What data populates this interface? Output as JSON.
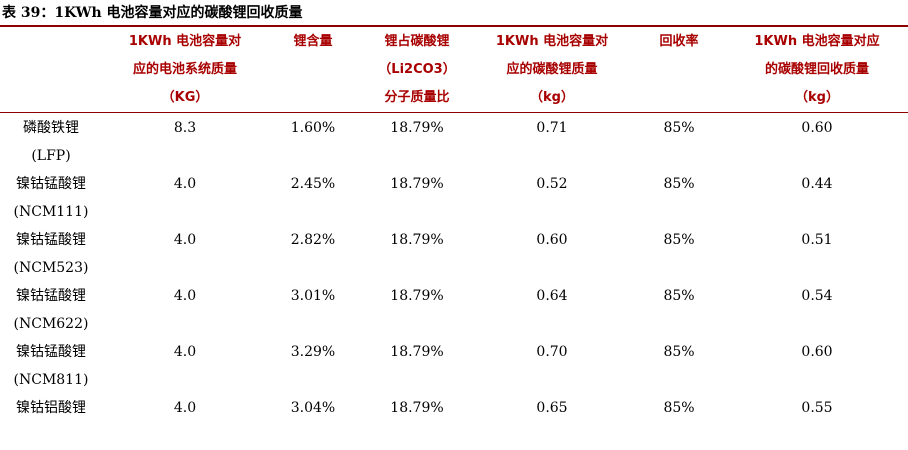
{
  "title": "表 39：1KWh 电池容量对应的碳酸锂回收质量",
  "headers": [
    [
      "1KWh 电池容量对",
      "应的电池系统质量",
      "（KG）"
    ],
    [
      "锂含量"
    ],
    [
      "锂占碳酸锂",
      "（Li2CO3）",
      "分子质量比"
    ],
    [
      "1KWh 电池容量对",
      "应的碳酸锂质量",
      "（kg）"
    ],
    [
      "回收率"
    ],
    [
      "1KWh 电池容量对应",
      "的碳酸锂回收质量",
      "（kg）"
    ]
  ],
  "rows": [
    {
      "name": [
        "磷酸铁锂",
        "(LFP)"
      ],
      "mass": "8.3",
      "li": "1.60%",
      "ratio": "18.79%",
      "li2co3": "0.71",
      "recovery": "85%",
      "recovered": "0.60"
    },
    {
      "name": [
        "镍钴锰酸锂",
        "(NCM111)"
      ],
      "mass": "4.0",
      "li": "2.45%",
      "ratio": "18.79%",
      "li2co3": "0.52",
      "recovery": "85%",
      "recovered": "0.44"
    },
    {
      "name": [
        "镍钴锰酸锂",
        "(NCM523)"
      ],
      "mass": "4.0",
      "li": "2.82%",
      "ratio": "18.79%",
      "li2co3": "0.60",
      "recovery": "85%",
      "recovered": "0.51"
    },
    {
      "name": [
        "镍钴锰酸锂",
        "(NCM622)"
      ],
      "mass": "4.0",
      "li": "3.01%",
      "ratio": "18.79%",
      "li2co3": "0.64",
      "recovery": "85%",
      "recovered": "0.54"
    },
    {
      "name": [
        "镍钴锰酸锂",
        "(NCM811)"
      ],
      "mass": "4.0",
      "li": "3.29%",
      "ratio": "18.79%",
      "li2co3": "0.70",
      "recovery": "85%",
      "recovered": "0.60"
    },
    {
      "name": [
        "镍钴铝酸锂"
      ],
      "mass": "4.0",
      "li": "3.04%",
      "ratio": "18.79%",
      "li2co3": "0.65",
      "recovery": "85%",
      "recovered": "0.55"
    }
  ],
  "colors": {
    "accent": "#a80000",
    "rule": "#8b0000"
  }
}
